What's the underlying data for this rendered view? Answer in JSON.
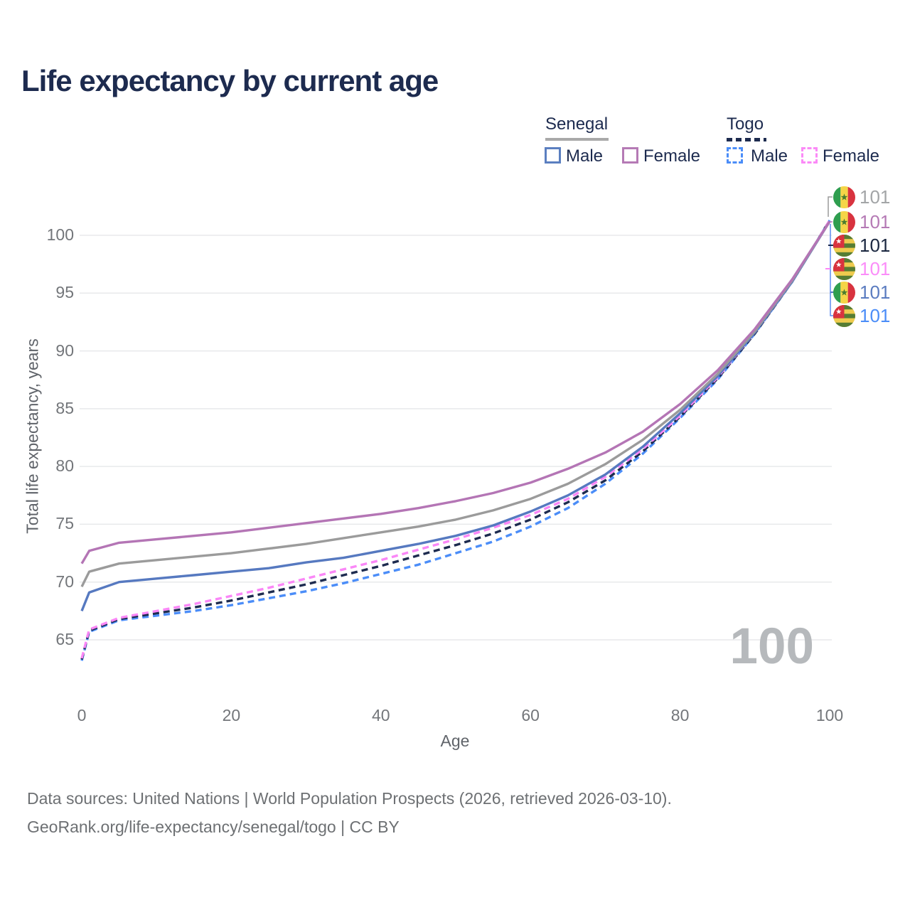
{
  "title": "Life expectancy by current age",
  "legend": {
    "senegal": {
      "label": "Senegal",
      "male": "Male",
      "female": "Female"
    },
    "togo": {
      "label": "Togo",
      "male": "Male",
      "female": "Female"
    }
  },
  "watermark": "100",
  "footer": {
    "line1": "Data sources: United Nations | World Population Prospects (2026, retrieved 2026-03-10).",
    "line2": "GeoRank.org/life-expectancy/senegal/togo | CC BY"
  },
  "end_labels": [
    {
      "flag": "senegal",
      "value": "101",
      "color": "#a3a5a7"
    },
    {
      "flag": "senegal",
      "value": "101",
      "color": "#b57ab5"
    },
    {
      "flag": "togo",
      "value": "101",
      "color": "#1b2740"
    },
    {
      "flag": "togo",
      "value": "101",
      "color": "#fb8df9"
    },
    {
      "flag": "senegal",
      "value": "101",
      "color": "#5b7cc0"
    },
    {
      "flag": "togo",
      "value": "101",
      "color": "#4b8df8"
    }
  ],
  "chart_data": {
    "type": "line",
    "title": "Life expectancy by current age",
    "xlabel": "Age",
    "ylabel": "Total life expectancy, years",
    "x_ticks": [
      0,
      20,
      40,
      60,
      80,
      100
    ],
    "y_ticks": [
      65,
      70,
      75,
      80,
      85,
      90,
      95,
      100
    ],
    "xlim": [
      0,
      100
    ],
    "ylim": [
      63,
      101.5
    ],
    "grid": "horizontal-only",
    "legend_position": "top-right",
    "x": [
      0,
      1,
      5,
      10,
      15,
      20,
      25,
      30,
      35,
      40,
      45,
      50,
      55,
      60,
      65,
      70,
      75,
      80,
      85,
      90,
      95,
      100
    ],
    "series": [
      {
        "name": "Togo Male",
        "country": "Togo",
        "sex": "male",
        "style": "dashed",
        "color": "#4b8df8",
        "values": [
          63.2,
          65.7,
          66.7,
          67.1,
          67.5,
          68.0,
          68.6,
          69.2,
          69.9,
          70.7,
          71.5,
          72.5,
          73.5,
          74.8,
          76.4,
          78.5,
          81.1,
          84.2,
          87.5,
          91.5,
          96.0,
          101.3
        ]
      },
      {
        "name": "Togo",
        "country": "Togo",
        "sex": "both",
        "style": "dashed",
        "color": "#1d2b4f",
        "values": [
          63.3,
          65.8,
          66.8,
          67.3,
          67.8,
          68.4,
          69.1,
          69.8,
          70.6,
          71.4,
          72.3,
          73.2,
          74.2,
          75.4,
          76.9,
          78.8,
          81.3,
          84.3,
          87.6,
          91.5,
          96.0,
          101.3
        ]
      },
      {
        "name": "Togo Female",
        "country": "Togo",
        "sex": "female",
        "style": "dashed",
        "color": "#fa87f7",
        "values": [
          63.4,
          65.9,
          66.9,
          67.5,
          68.1,
          68.8,
          69.5,
          70.3,
          71.1,
          71.9,
          72.8,
          73.7,
          74.7,
          75.8,
          77.2,
          79.1,
          81.5,
          84.4,
          87.7,
          91.6,
          96.0,
          101.3
        ]
      },
      {
        "name": "Senegal Male",
        "country": "Senegal",
        "sex": "male",
        "style": "solid",
        "color": "#5679c0",
        "values": [
          67.5,
          69.1,
          70.0,
          70.3,
          70.6,
          70.9,
          71.2,
          71.7,
          72.1,
          72.7,
          73.3,
          74.0,
          74.9,
          76.1,
          77.5,
          79.3,
          81.7,
          84.6,
          87.8,
          91.6,
          96.0,
          101.2
        ]
      },
      {
        "name": "Senegal",
        "country": "Senegal",
        "sex": "both",
        "style": "solid",
        "color": "#9b9b9b",
        "values": [
          69.6,
          70.9,
          71.6,
          71.9,
          72.2,
          72.5,
          72.9,
          73.3,
          73.8,
          74.3,
          74.8,
          75.4,
          76.2,
          77.2,
          78.5,
          80.2,
          82.3,
          84.9,
          88.0,
          91.7,
          96.1,
          101.2
        ]
      },
      {
        "name": "Senegal Female",
        "country": "Senegal",
        "sex": "female",
        "style": "solid",
        "color": "#b475b5",
        "values": [
          71.6,
          72.7,
          73.4,
          73.7,
          74.0,
          74.3,
          74.7,
          75.1,
          75.5,
          75.9,
          76.4,
          77.0,
          77.7,
          78.6,
          79.8,
          81.2,
          83.0,
          85.4,
          88.3,
          91.9,
          96.2,
          101.2
        ]
      }
    ]
  }
}
